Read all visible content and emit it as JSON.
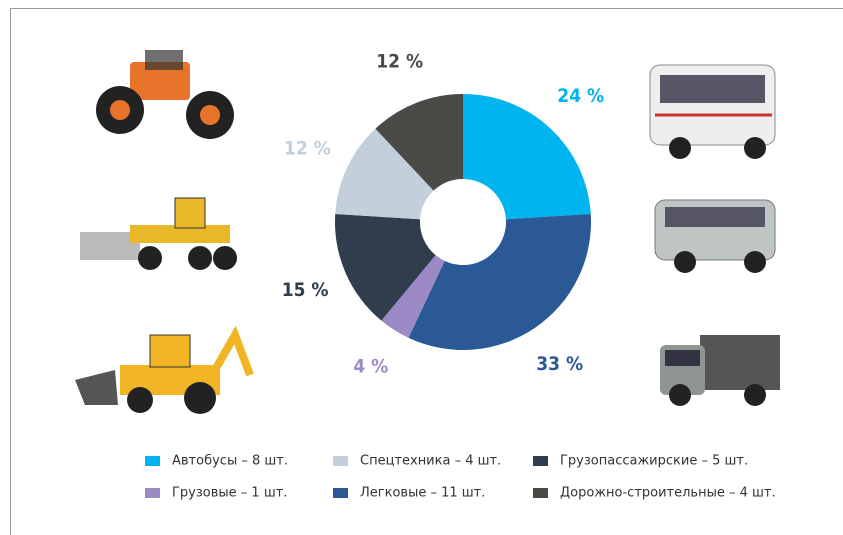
{
  "chart_data": {
    "type": "donut",
    "categories": [
      "Автобусы – 8 шт.",
      "Легковые – 11 шт.",
      "Грузовые – 1 шт.",
      "Грузопассажирские – 5 шт.",
      "Спецтехника – 4 шт.",
      "Дорожно-строительные – 4 шт."
    ],
    "values": [
      24,
      33,
      4,
      15,
      12,
      12
    ],
    "value_labels": [
      "24 %",
      "33 %",
      "4 %",
      "15 %",
      "12 %",
      "12 %"
    ],
    "colors": [
      "#00b4ef",
      "#2b5996",
      "#9c8ac6",
      "#2f3d4c",
      "#c3cfda",
      "#4b4a47"
    ]
  }
}
